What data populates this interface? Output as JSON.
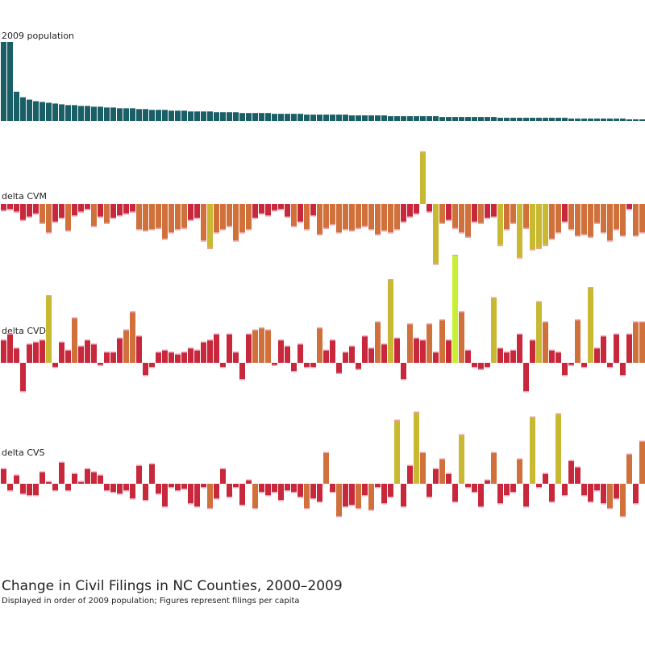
{
  "title": "Change in Civil Filings in NC Counties, 2000–2009",
  "subtitle": "Displayed in order of 2009 population; Figures represent filings per capita",
  "colors": {
    "population": "#1a5e66",
    "low": "#c8283c",
    "mid": "#d0703a",
    "high": "#c8b832",
    "extreme": "#c8f032",
    "tick": "#f0a0b0"
  },
  "chart_data": [
    {
      "type": "bar",
      "label": "2009 population",
      "series": [
        {
          "values": [
            100,
            100,
            37,
            30,
            27,
            25,
            24,
            23,
            22,
            21,
            20,
            20,
            19,
            19,
            18,
            18,
            17,
            17,
            16,
            16,
            16,
            15,
            15,
            14,
            14,
            14,
            13,
            13,
            13,
            12,
            12,
            12,
            12,
            11,
            11,
            11,
            11,
            10,
            10,
            10,
            10,
            10,
            9,
            9,
            9,
            9,
            9,
            8,
            8,
            8,
            8,
            8,
            8,
            8,
            7,
            7,
            7,
            7,
            7,
            7,
            6,
            6,
            6,
            6,
            6,
            6,
            6,
            6,
            5,
            5,
            5,
            5,
            5,
            5,
            5,
            5,
            5,
            4,
            4,
            4,
            4,
            4,
            4,
            4,
            4,
            4,
            4,
            4,
            3,
            3,
            3,
            3,
            3,
            3,
            3,
            3,
            3,
            2,
            2,
            2
          ]
        }
      ]
    },
    {
      "type": "bar",
      "label": "delta CVM",
      "series": [
        {
          "values": [
            -10,
            -8,
            -12,
            -25,
            -20,
            -15,
            -30,
            -45,
            -28,
            -22,
            -42,
            -18,
            -12,
            -8,
            -35,
            -20,
            -30,
            -22,
            -18,
            -15,
            -12,
            -40,
            -42,
            -40,
            -38,
            -55,
            -45,
            -40,
            -38,
            -25,
            -22,
            -58,
            -70,
            -45,
            -40,
            -35,
            -58,
            -45,
            -40,
            -22,
            -15,
            -18,
            -10,
            -8,
            -20,
            -35,
            -28,
            -40,
            -18,
            -48,
            -38,
            -32,
            -45,
            -40,
            -42,
            -38,
            -35,
            -40,
            -48,
            -42,
            -45,
            -40,
            -28,
            -20,
            -15,
            82,
            -12,
            -95,
            -30,
            -25,
            -38,
            -45,
            -52,
            -28,
            -30,
            -22,
            -20,
            -65,
            -40,
            -30,
            -85,
            -38,
            -72,
            -70,
            -65,
            -55,
            -45,
            -28,
            -40,
            -50,
            -48,
            -52,
            -30,
            -45,
            -58,
            -40,
            -50,
            -8,
            -50,
            -45
          ]
        }
      ]
    },
    {
      "type": "bar",
      "label": "delta CVD",
      "series": [
        {
          "values": [
            22,
            28,
            14,
            -28,
            18,
            20,
            22,
            66,
            -4,
            20,
            12,
            44,
            16,
            22,
            18,
            -2,
            10,
            10,
            24,
            32,
            50,
            26,
            -12,
            -4,
            10,
            12,
            10,
            8,
            10,
            14,
            12,
            20,
            22,
            28,
            -4,
            28,
            10,
            -16,
            28,
            32,
            34,
            32,
            -2,
            22,
            16,
            -8,
            18,
            -4,
            -4,
            34,
            12,
            22,
            -10,
            10,
            16,
            -6,
            26,
            14,
            40,
            18,
            82,
            24,
            -16,
            38,
            24,
            22,
            38,
            10,
            42,
            22,
            106,
            50,
            12,
            -4,
            -6,
            -4,
            64,
            14,
            10,
            12,
            28,
            -28,
            22,
            60,
            40,
            12,
            10,
            -12,
            -2,
            42,
            -4,
            74,
            14,
            26,
            -4,
            28,
            -12,
            28,
            40,
            40
          ]
        }
      ]
    },
    {
      "type": "bar",
      "label": "delta CVS",
      "series": [
        {
          "values": [
            18,
            -8,
            10,
            -12,
            -14,
            -14,
            14,
            2,
            -8,
            26,
            -8,
            12,
            2,
            18,
            14,
            10,
            -8,
            -10,
            -12,
            -8,
            -18,
            22,
            -20,
            24,
            -12,
            -28,
            -4,
            -8,
            -6,
            -24,
            -28,
            -4,
            -30,
            -18,
            18,
            -16,
            -4,
            -26,
            4,
            -30,
            -10,
            -14,
            -10,
            -20,
            -8,
            -10,
            -16,
            -30,
            -18,
            -22,
            38,
            -10,
            -40,
            -28,
            -26,
            -30,
            -14,
            -32,
            -4,
            -24,
            -16,
            78,
            -28,
            22,
            88,
            38,
            -16,
            18,
            30,
            12,
            -22,
            60,
            -4,
            -10,
            -28,
            4,
            38,
            -24,
            -14,
            -10,
            30,
            -28,
            82,
            -4,
            12,
            -22,
            86,
            -14,
            28,
            20,
            -14,
            -22,
            -8,
            -24,
            -30,
            -18,
            -40,
            36,
            -24,
            52
          ]
        }
      ]
    }
  ]
}
